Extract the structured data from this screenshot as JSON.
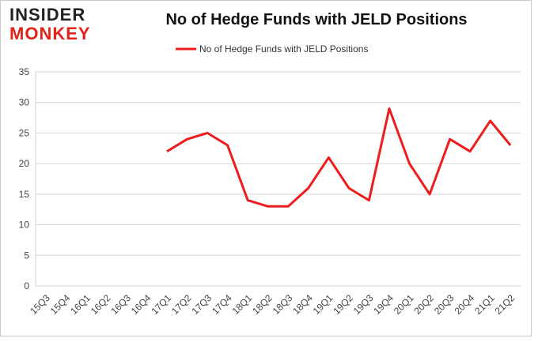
{
  "logo": {
    "line1": "INSIDER",
    "line2": "MONKEY"
  },
  "chart_data": {
    "type": "line",
    "title": "No of Hedge Funds with JELD Positions",
    "xlabel": "",
    "ylabel": "",
    "categories": [
      "15Q3",
      "15Q4",
      "16Q1",
      "16Q2",
      "16Q3",
      "16Q4",
      "17Q1",
      "17Q2",
      "17Q3",
      "17Q4",
      "18Q1",
      "18Q2",
      "18Q3",
      "18Q4",
      "19Q1",
      "19Q2",
      "19Q3",
      "19Q4",
      "20Q1",
      "20Q2",
      "20Q3",
      "20Q4",
      "21Q1",
      "21Q2"
    ],
    "series": [
      {
        "name": "No of Hedge Funds with JELD Positions",
        "color": "#ee1c1c",
        "values": [
          null,
          null,
          null,
          null,
          null,
          null,
          22,
          24,
          25,
          23,
          14,
          13,
          13,
          16,
          21,
          16,
          14,
          29,
          20,
          15,
          24,
          22,
          27,
          23
        ]
      }
    ],
    "ylim": [
      0,
      35
    ],
    "yticks": [
      0,
      5,
      10,
      15,
      20,
      25,
      30,
      35
    ],
    "grid": true,
    "legend_position": "top"
  }
}
